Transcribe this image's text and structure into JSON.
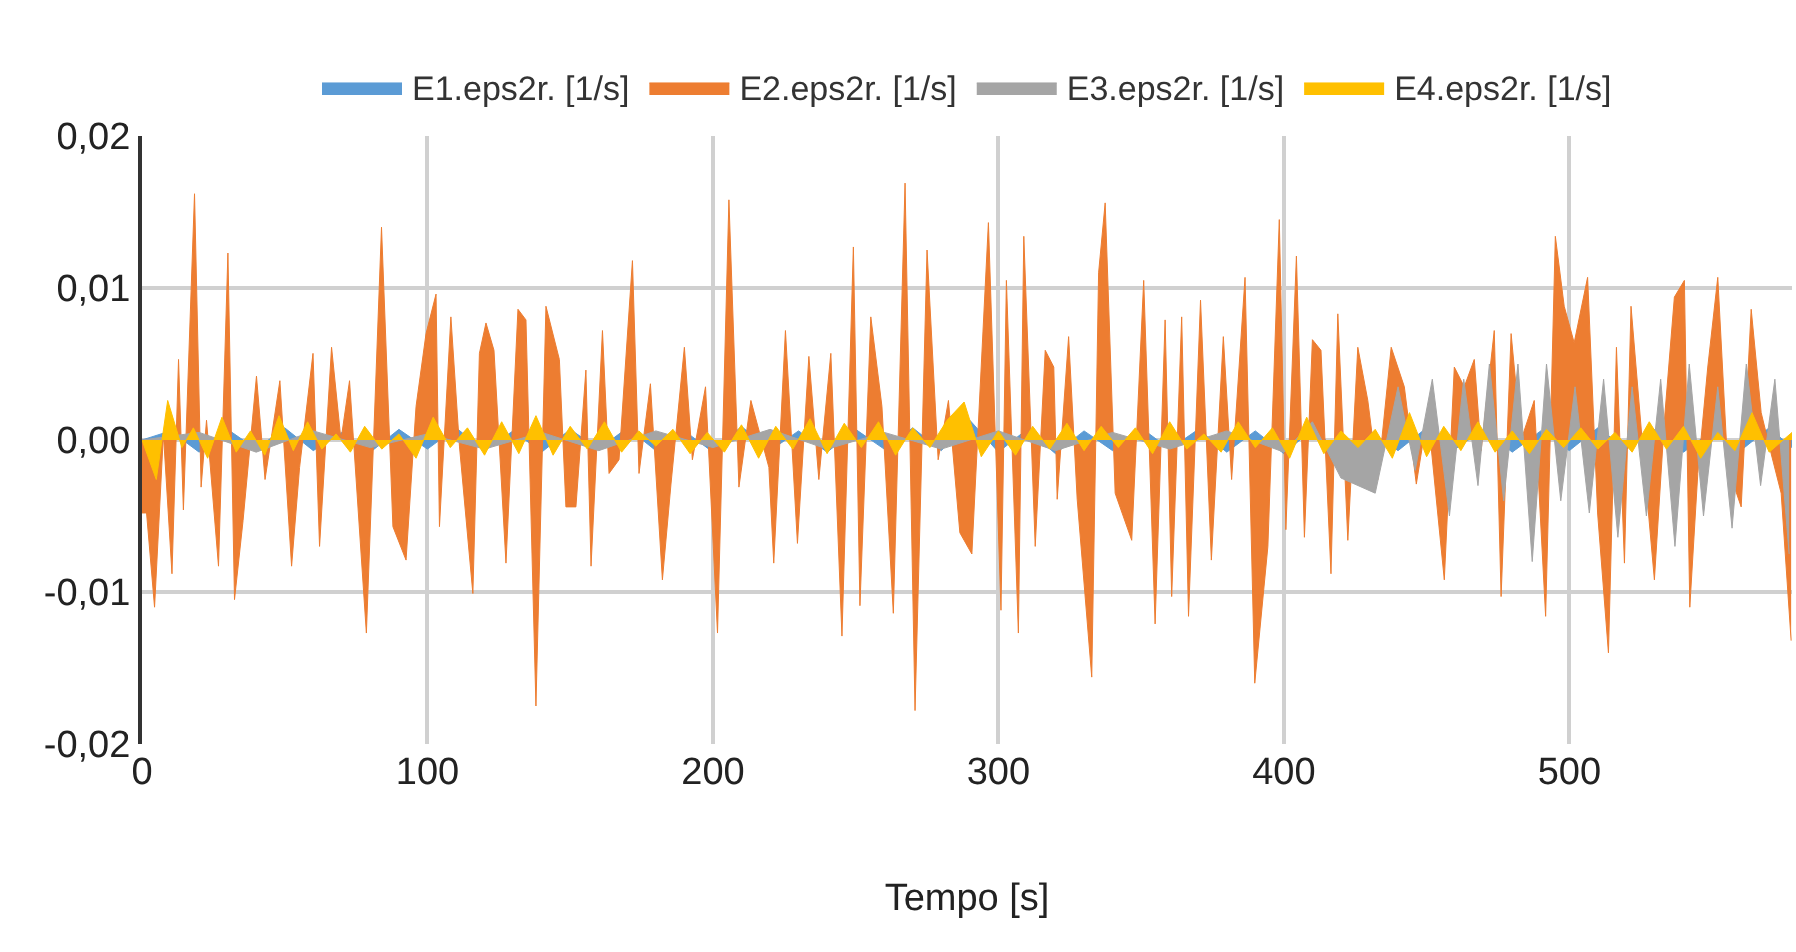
{
  "chart_data": {
    "type": "area",
    "xlabel": "Tempo [s]",
    "xlim": [
      0,
      578
    ],
    "xticks": [
      0,
      100,
      200,
      300,
      400,
      500
    ],
    "ylim": [
      -0.02,
      0.02
    ],
    "yticks": [
      {
        "value": -0.02,
        "label": "-0,02"
      },
      {
        "value": -0.01,
        "label": "-0,01"
      },
      {
        "value": 0,
        "label": "0,00"
      },
      {
        "value": 0.01,
        "label": "0,01"
      },
      {
        "value": 0.02,
        "label": "0,02"
      }
    ],
    "grid": true,
    "legend": "top",
    "series": [
      {
        "name": "E1.eps2r. [1/s]",
        "color": "#5b9bd5",
        "x": [
          0,
          10,
          20,
          30,
          40,
          50,
          60,
          70,
          80,
          90,
          100,
          110,
          120,
          130,
          140,
          150,
          160,
          170,
          180,
          190,
          200,
          210,
          220,
          230,
          240,
          250,
          260,
          270,
          280,
          290,
          300,
          310,
          320,
          330,
          340,
          350,
          360,
          370,
          380,
          390,
          400,
          410,
          420,
          430,
          440,
          450,
          460,
          470,
          480,
          490,
          500,
          510,
          520,
          530,
          540,
          550,
          560,
          570,
          578
        ],
        "values": [
          0,
          0.0006,
          -0.0008,
          0.0007,
          -0.0006,
          0.0008,
          -0.0007,
          0.0005,
          -0.0008,
          0.0007,
          -0.0006,
          0.0008,
          -0.0007,
          0.0006,
          -0.0008,
          0.0007,
          -0.0006,
          0.0008,
          -0.0007,
          0.0006,
          -0.0008,
          0.0009,
          -0.0007,
          0.0006,
          -0.0008,
          0.0007,
          -0.0006,
          0.0008,
          -0.0007,
          0.0013,
          -0.0008,
          0.0007,
          -0.0009,
          0.0006,
          -0.0007,
          0.0008,
          -0.0006,
          0.0007,
          -0.0008,
          0.0006,
          -0.0009,
          0.0007,
          -0.0008,
          0.0006,
          -0.0007,
          0.0008,
          -0.0006,
          0.0007,
          -0.0008,
          0.0006,
          -0.0007,
          0.0008,
          -0.0006,
          0.0007,
          -0.0008,
          0.0006,
          -0.0007,
          0.0008,
          -0.0005
        ]
      },
      {
        "name": "E2.eps2r. [1/s]",
        "color": "#ed7d31",
        "x": [
          0,
          1.6,
          4.4,
          7.5,
          10.5,
          12.8,
          14.5,
          18.4,
          20.7,
          22.6,
          26.8,
          30.1,
          32.4,
          35.4,
          40.1,
          43.1,
          48.3,
          52.4,
          55.2,
          59.9,
          62.2,
          66.4,
          69.7,
          72.7,
          78.6,
          83.9,
          87.9,
          92.5,
          96,
          99.5,
          103,
          104.2,
          108.2,
          111.2,
          115.9,
          118.2,
          120.5,
          123.3,
          127.5,
          131.7,
          134.5,
          138,
          141.5,
          146.2,
          148.5,
          152,
          155.5,
          157.3,
          161.3,
          163.6,
          167.1,
          171.8,
          174.1,
          178.1,
          182.3,
          185.3,
          190,
          192.8,
          197.4,
          201.6,
          205.6,
          209.1,
          213.3,
          219.6,
          221.3,
          225.4,
          229.6,
          233.6,
          237.1,
          241.3,
          245.2,
          249.2,
          251.5,
          255.3,
          259.2,
          263.2,
          267.3,
          270.8,
          275,
          278.9,
          282.5,
          286.5,
          290.7,
          296.5,
          300.9,
          302.8,
          307,
          308.9,
          312.9,
          316.4,
          319.4,
          320.6,
          324.6,
          327.6,
          332.7,
          335.1,
          337.4,
          340.9,
          346.7,
          350.9,
          354.9,
          358.4,
          360.7,
          364.2,
          366.6,
          370.8,
          374.6,
          378.8,
          381.7,
          386.4,
          389.8,
          394.4,
          398.4,
          400.7,
          404.4,
          407.2,
          410,
          413,
          416.5,
          418.9,
          422.4,
          425.9,
          429.4,
          432.9,
          437.6,
          442.2,
          446.4,
          450.4,
          456.2,
          459.7,
          463.2,
          466.7,
          469.1,
          473.7,
          476.1,
          479.6,
          483.1,
          487.7,
          491.7,
          495.1,
          498.2,
          501.7,
          506.4,
          509.9,
          513.7,
          516.5,
          519.3,
          521.6,
          526.3,
          529.8,
          533.3,
          536.8,
          540.3,
          542.2,
          545,
          548.5,
          552,
          555.5,
          560.2,
          563.7,
          567.2,
          570.7,
          574.2,
          577.7
        ],
        "values": [
          -0.0048,
          -0.0048,
          -0.011,
          0.0004,
          -0.0088,
          0.0053,
          -0.0046,
          0.0162,
          -0.0031,
          0.0013,
          -0.0083,
          0.0123,
          -0.0105,
          -0.0053,
          0.0042,
          -0.0026,
          0.0039,
          -0.0083,
          -0.0018,
          0.0057,
          -0.007,
          0.0061,
          0,
          0.0039,
          -0.0127,
          0.014,
          -0.0057,
          -0.0079,
          0.0022,
          0.007,
          0.0096,
          -0.0057,
          0.0081,
          -0.0004,
          -0.0101,
          0.0057,
          0.0077,
          0.0059,
          -0.0081,
          0.0086,
          0.0079,
          -0.0175,
          0.0088,
          0.0053,
          -0.0044,
          -0.0044,
          0.0046,
          -0.0083,
          0.0072,
          -0.0022,
          -0.0013,
          0.0118,
          -0.0022,
          0.0037,
          -0.0092,
          -0.0029,
          0.0061,
          -0.0013,
          0.0035,
          -0.0127,
          0.0158,
          -0.0031,
          0.0026,
          -0.0018,
          -0.0081,
          0.0072,
          -0.0068,
          0.0055,
          -0.0026,
          0.0057,
          -0.0129,
          0.0127,
          -0.0109,
          0.0081,
          0.0022,
          -0.0114,
          0.0169,
          -0.0178,
          0.0125,
          -0.0013,
          0.0026,
          -0.0061,
          -0.0075,
          0.0143,
          -0.0112,
          0.0105,
          -0.0127,
          0.0134,
          -0.007,
          0.0059,
          0.0048,
          -0.0039,
          0.0068,
          -0.0039,
          -0.0156,
          0.011,
          0.0156,
          -0.0035,
          -0.0066,
          0.0105,
          -0.0121,
          0.0079,
          -0.0103,
          0.0081,
          -0.0116,
          0.0092,
          -0.0079,
          0.0068,
          -0.0026,
          0.0107,
          -0.016,
          -0.007,
          0.0145,
          -0.0059,
          0.0121,
          -0.0064,
          0.0066,
          0.0059,
          -0.0088,
          0.0083,
          -0.0066,
          0.0061,
          0.0026,
          -0.0026,
          0.0061,
          0.0035,
          -0.0029,
          0.0018,
          -0.0092,
          0.0048,
          0.0035,
          0.0053,
          -0.0007,
          0.0072,
          -0.0103,
          0.007,
          0,
          0.0026,
          -0.0116,
          0.0134,
          0.0088,
          0.0064,
          0.0107,
          -0.0048,
          -0.014,
          0.0061,
          -0.0081,
          0.0088,
          -0.0018,
          -0.0092,
          0.0013,
          0.0094,
          0.0105,
          -0.011,
          -0.0022,
          0.0048,
          0.0107,
          -0.0018,
          -0.0044,
          0.0086,
          0.0018,
          -0.0009,
          -0.0035,
          -0.0132
        ]
      },
      {
        "name": "E3.eps2r. [1/s]",
        "color": "#a5a5a5",
        "x": [
          0,
          20,
          40,
          60,
          80,
          100,
          120,
          140,
          160,
          180,
          200,
          220,
          240,
          260,
          280,
          300,
          320,
          340,
          360,
          380,
          400,
          410,
          420,
          432,
          440,
          446,
          452,
          458,
          463,
          468,
          472,
          477,
          482,
          487,
          492,
          497,
          502,
          507,
          512,
          517,
          522,
          527,
          532,
          537,
          542,
          547,
          552,
          557,
          562,
          567,
          572,
          577
        ],
        "values": [
          0,
          0.0005,
          -0.0008,
          0.0006,
          -0.0005,
          0.0004,
          -0.0006,
          0.0005,
          -0.0007,
          0.0006,
          -0.0005,
          0.0007,
          -0.0006,
          0.0005,
          -0.0006,
          0.0006,
          -0.0007,
          0.0005,
          -0.0006,
          0.0006,
          -0.0008,
          0.0012,
          -0.0025,
          -0.0035,
          0.0035,
          -0.002,
          0.004,
          -0.005,
          0.004,
          -0.003,
          0.005,
          -0.004,
          0.005,
          -0.008,
          0.005,
          -0.004,
          0.0035,
          -0.0048,
          0.004,
          -0.0064,
          0.0035,
          -0.005,
          0.004,
          -0.007,
          0.005,
          -0.005,
          0.0035,
          -0.0058,
          0.005,
          -0.003,
          0.004,
          -0.0075
        ]
      },
      {
        "name": "E4.eps2r. [1/s]",
        "color": "#ffc000",
        "x": [
          0,
          5,
          9,
          14,
          18,
          23,
          28,
          33,
          38,
          43,
          48,
          53,
          58,
          63,
          68,
          73,
          78,
          84,
          90,
          96,
          102,
          108,
          114,
          120,
          126,
          132,
          138,
          144,
          150,
          156,
          162,
          168,
          174,
          180,
          186,
          192,
          198,
          204,
          210,
          216,
          222,
          228,
          234,
          240,
          246,
          252,
          258,
          264,
          270,
          276,
          282,
          288,
          294,
          300,
          306,
          312,
          318,
          324,
          330,
          336,
          342,
          348,
          354,
          360,
          366,
          372,
          378,
          384,
          390,
          396,
          402,
          408,
          414,
          420,
          426,
          432,
          438,
          444,
          450,
          456,
          462,
          468,
          474,
          480,
          486,
          492,
          498,
          504,
          510,
          516,
          522,
          528,
          534,
          540,
          546,
          552,
          558,
          564,
          570,
          578
        ],
        "values": [
          0,
          -0.0026,
          0.0026,
          -0.0005,
          0.0008,
          -0.0012,
          0.0015,
          -0.0008,
          0.0006,
          -0.001,
          0.0016,
          -0.0007,
          0.0012,
          -0.0006,
          0.0004,
          -0.0008,
          0.0009,
          -0.0006,
          0.0004,
          -0.0012,
          0.0015,
          -0.0005,
          0.0008,
          -0.001,
          0.0012,
          -0.0009,
          0.0016,
          -0.001,
          0.0009,
          -0.0006,
          0.0012,
          -0.0008,
          0.0006,
          -0.0004,
          0.0007,
          -0.0009,
          0.0005,
          -0.0008,
          0.001,
          -0.0012,
          0.0009,
          -0.0006,
          0.0014,
          -0.0009,
          0.0011,
          -0.0005,
          0.0012,
          -0.001,
          0.0008,
          -0.0005,
          0.0013,
          0.0025,
          -0.0011,
          0.0006,
          -0.001,
          0.0009,
          -0.0006,
          0.0011,
          -0.0007,
          0.0009,
          -0.0005,
          0.0008,
          -0.0009,
          0.0012,
          -0.0006,
          0.0004,
          -0.0008,
          0.0012,
          -0.0005,
          0.0008,
          -0.0012,
          0.0015,
          -0.0009,
          0.0006,
          -0.0005,
          0.0007,
          -0.0012,
          0.0018,
          -0.0011,
          0.0009,
          -0.0007,
          0.0012,
          -0.0008,
          0.0006,
          -0.0009,
          0.0007,
          -0.0005,
          0.0008,
          -0.0006,
          0.0005,
          -0.0008,
          0.0012,
          -0.0006,
          0.0009,
          -0.0012,
          0.0005,
          -0.0007,
          0.0018,
          -0.0008,
          0.0005
        ]
      }
    ]
  }
}
